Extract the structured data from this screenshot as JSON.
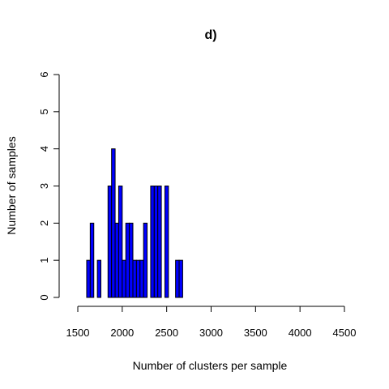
{
  "chart_data": {
    "type": "bar",
    "title": "d)",
    "xlabel": "Number of clusters per sample",
    "ylabel": "Number of samples",
    "xlim": [
      1500,
      4500
    ],
    "ylim": [
      0,
      6
    ],
    "x_ticks": [
      "1500",
      "2000",
      "2500",
      "3000",
      "3500",
      "4000",
      "4500"
    ],
    "y_ticks": [
      "0",
      "1",
      "2",
      "3",
      "4",
      "5",
      "6"
    ],
    "bin_width": 40,
    "bins": [
      {
        "start": 1600,
        "count": 1
      },
      {
        "start": 1640,
        "count": 2
      },
      {
        "start": 1680,
        "count": 0
      },
      {
        "start": 1720,
        "count": 1
      },
      {
        "start": 1760,
        "count": 0
      },
      {
        "start": 1800,
        "count": 0
      },
      {
        "start": 1840,
        "count": 3
      },
      {
        "start": 1880,
        "count": 4
      },
      {
        "start": 1920,
        "count": 2
      },
      {
        "start": 1960,
        "count": 3
      },
      {
        "start": 2000,
        "count": 1
      },
      {
        "start": 2040,
        "count": 2
      },
      {
        "start": 2080,
        "count": 2
      },
      {
        "start": 2120,
        "count": 1
      },
      {
        "start": 2160,
        "count": 1
      },
      {
        "start": 2200,
        "count": 1
      },
      {
        "start": 2240,
        "count": 2
      },
      {
        "start": 2280,
        "count": 0
      },
      {
        "start": 2320,
        "count": 3
      },
      {
        "start": 2360,
        "count": 3
      },
      {
        "start": 2400,
        "count": 3
      },
      {
        "start": 2440,
        "count": 0
      },
      {
        "start": 2480,
        "count": 3
      },
      {
        "start": 2520,
        "count": 0
      },
      {
        "start": 2560,
        "count": 0
      },
      {
        "start": 2600,
        "count": 1
      },
      {
        "start": 2640,
        "count": 1
      }
    ],
    "bar_color": "#0000ff",
    "grid": false
  }
}
